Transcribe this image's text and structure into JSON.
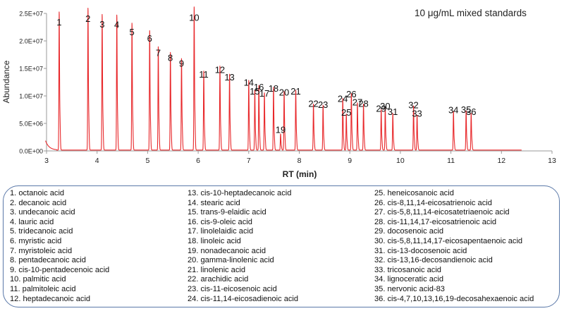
{
  "chart_data": {
    "type": "line",
    "annotation": "10 μg/mL mixed standards",
    "xlabel": "RT (min)",
    "ylabel": "Abundance",
    "xlim": [
      3,
      13
    ],
    "ylim": [
      0,
      25000000
    ],
    "x_ticks": [
      "3",
      "4",
      "5",
      "6",
      "7",
      "8",
      "9",
      "10",
      "11",
      "12",
      "13"
    ],
    "y_ticks": [
      "0.0E+00",
      "5.0E+06",
      "1.0E+07",
      "1.5E+07",
      "2.0E+07",
      "2.5E+07"
    ],
    "line_color": "#e8282b",
    "peaks": [
      {
        "label": "1",
        "rt": 3.25,
        "height": 22200000
      },
      {
        "label": "2",
        "rt": 3.82,
        "height": 22800000
      },
      {
        "label": "3",
        "rt": 4.1,
        "height": 21800000
      },
      {
        "label": "4",
        "rt": 4.39,
        "height": 21700000
      },
      {
        "label": "5",
        "rt": 4.69,
        "height": 20400000
      },
      {
        "label": "6",
        "rt": 5.04,
        "height": 19200000
      },
      {
        "label": "7",
        "rt": 5.21,
        "height": 16600000
      },
      {
        "label": "8",
        "rt": 5.45,
        "height": 15700000
      },
      {
        "label": "9",
        "rt": 5.67,
        "height": 14700000
      },
      {
        "label": "10",
        "rt": 5.92,
        "height": 23000000
      },
      {
        "label": "11",
        "rt": 6.11,
        "height": 12700000
      },
      {
        "label": "12",
        "rt": 6.43,
        "height": 13500000
      },
      {
        "label": "13",
        "rt": 6.62,
        "height": 12200000
      },
      {
        "label": "14",
        "rt": 7.0,
        "height": 11200000
      },
      {
        "label": "15",
        "rt": 7.12,
        "height": 9600000
      },
      {
        "label": "16",
        "rt": 7.2,
        "height": 10400000
      },
      {
        "label": "17",
        "rt": 7.31,
        "height": 9200000
      },
      {
        "label": "18",
        "rt": 7.49,
        "height": 10100000
      },
      {
        "label": "19",
        "rt": 7.63,
        "height": 2600000
      },
      {
        "label": "20",
        "rt": 7.7,
        "height": 9400000
      },
      {
        "label": "21",
        "rt": 7.93,
        "height": 9600000
      },
      {
        "label": "22",
        "rt": 8.28,
        "height": 7400000
      },
      {
        "label": "23",
        "rt": 8.47,
        "height": 7200000
      },
      {
        "label": "24",
        "rt": 8.86,
        "height": 8300000
      },
      {
        "label": "25",
        "rt": 8.93,
        "height": 5800000
      },
      {
        "label": "26",
        "rt": 9.03,
        "height": 9100000
      },
      {
        "label": "27",
        "rt": 9.15,
        "height": 7600000
      },
      {
        "label": "28",
        "rt": 9.27,
        "height": 7400000
      },
      {
        "label": "29",
        "rt": 9.62,
        "height": 6500000
      },
      {
        "label": "30",
        "rt": 9.7,
        "height": 6900000
      },
      {
        "label": "31",
        "rt": 9.85,
        "height": 5900000
      },
      {
        "label": "32",
        "rt": 10.26,
        "height": 7100000
      },
      {
        "label": "33",
        "rt": 10.33,
        "height": 5600000
      },
      {
        "label": "34",
        "rt": 11.05,
        "height": 6200000
      },
      {
        "label": "35",
        "rt": 11.3,
        "height": 6300000
      },
      {
        "label": "36",
        "rt": 11.4,
        "height": 5900000
      }
    ]
  },
  "legend": {
    "col1": [
      "1. octanoic acid",
      "2. decanoic acid",
      "3. undecanoic acid",
      "4. lauric acid",
      "5. tridecanoic acid",
      "6. myristic acid",
      "7. myristoleic acid",
      "8. pentadecanoic acid",
      "9. cis-10-pentadecenoic acid",
      "10. palmitic acid",
      "11. palmitoleic acid",
      "12. heptadecanoic acid"
    ],
    "col2": [
      "13. cis-10-heptadecanoic acid",
      "14. stearic acid",
      "15. trans-9-elaidic acid",
      "16. cis-9-oleic acid",
      "17. linolelaidic acid",
      "18. linoleic acid",
      "19. nonadecanoic acid",
      "20. gamma-linolenic acid",
      "21. linolenic acid",
      "22. arachidic acid",
      "23. cis-11-eicosenoic acid",
      "24. cis-11,14-eicosadienoic acid"
    ],
    "col3": [
      "25. heneicosanoic acid",
      "26. cis-8,11,14-eicosatrienoic acid",
      "27. cis-5,8,11,14-eicosatetriaenoic acid",
      "28. cis-11,14,17-eicosatrienoic acid",
      "29. docosenoic acid",
      "30. cis-5,8,11,14,17-eicosapentaenoic acid",
      "31. cis-13-docosenoic acid",
      "32. cis-13,16-decosandienoic acid",
      "33. tricosanoic acid",
      "34. lignoceratic acid",
      "35. nervonic acid-83",
      "36. cis-4,7,10,13,16,19-decosahexaenoic acid"
    ]
  }
}
